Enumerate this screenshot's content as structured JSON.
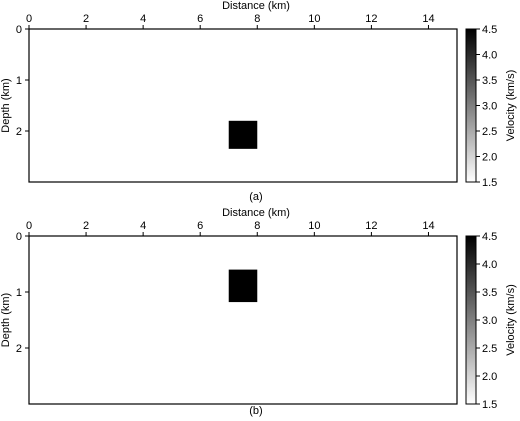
{
  "chart_data": [
    {
      "type": "heatmap",
      "panel_label": "(a)",
      "xlabel": "Distance (km)",
      "ylabel": "Depth (km)",
      "xlim": [
        0,
        15
      ],
      "ylim": [
        0,
        3
      ],
      "xticks": [
        0,
        2,
        4,
        6,
        8,
        10,
        12,
        14
      ],
      "yticks": [
        0,
        1,
        2
      ],
      "background_velocity": 1.5,
      "anomaly": {
        "x": [
          7.0,
          8.0
        ],
        "depth": [
          1.8,
          2.35
        ],
        "velocity": 4.5
      },
      "colorbar": {
        "label": "Velocity (km/s)",
        "range": [
          1.5,
          4.5
        ],
        "ticks": [
          "1.5",
          "2.0",
          "2.5",
          "3.0",
          "3.5",
          "4.0",
          "4.5"
        ],
        "colors": [
          "#ffffff",
          "#000000"
        ]
      }
    },
    {
      "type": "heatmap",
      "panel_label": "(b)",
      "xlabel": "Distance (km)",
      "ylabel": "Depth (km)",
      "xlim": [
        0,
        15
      ],
      "ylim": [
        0,
        3
      ],
      "xticks": [
        0,
        2,
        4,
        6,
        8,
        10,
        12,
        14
      ],
      "yticks": [
        0,
        1,
        2
      ],
      "background_velocity": 1.5,
      "anomaly": {
        "x": [
          7.0,
          8.0
        ],
        "depth": [
          0.6,
          1.18
        ],
        "velocity": 4.5
      },
      "colorbar": {
        "label": "Velocity (km/s)",
        "range": [
          1.5,
          4.5
        ],
        "ticks": [
          "1.5",
          "2.0",
          "2.5",
          "3.0",
          "3.5",
          "4.0",
          "4.5"
        ],
        "colors": [
          "#ffffff",
          "#000000"
        ]
      }
    }
  ]
}
